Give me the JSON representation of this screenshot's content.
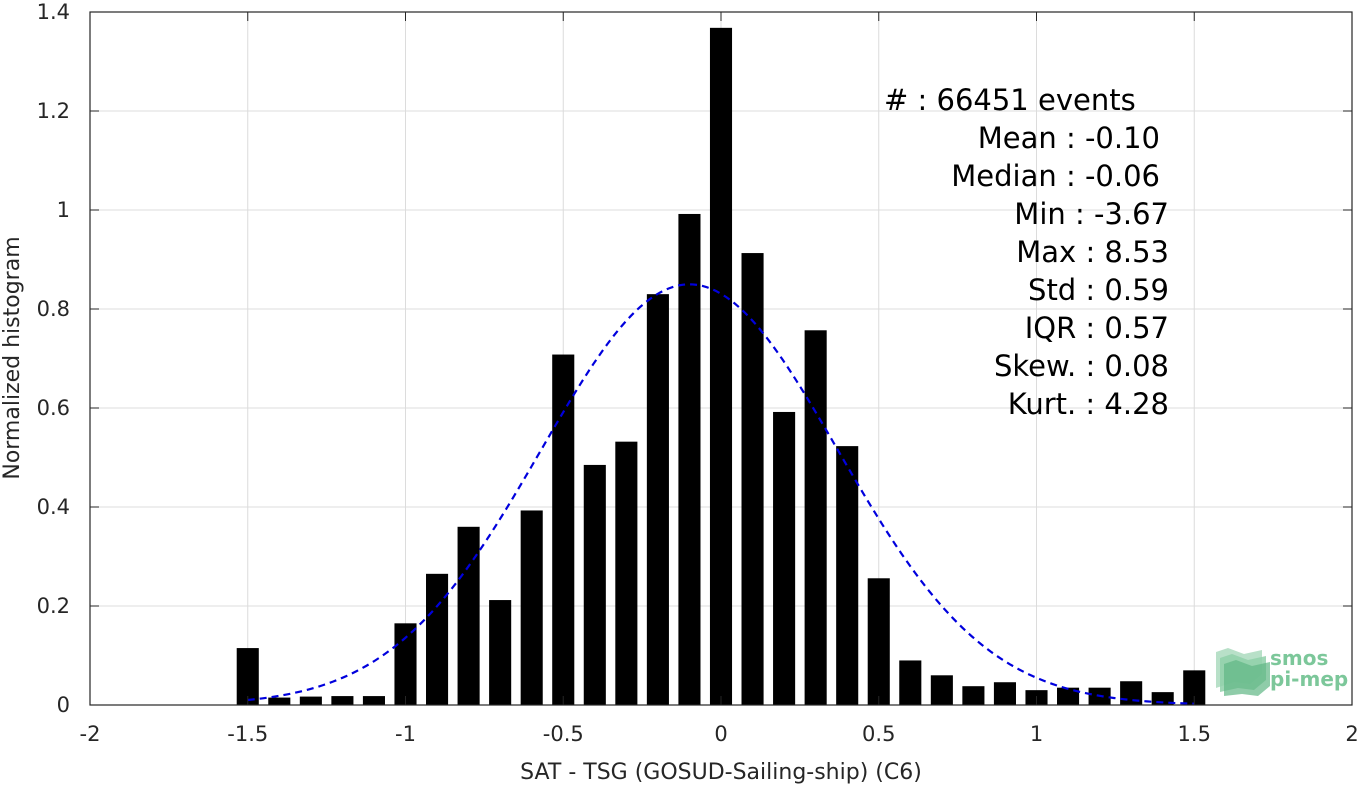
{
  "chart_data": {
    "type": "bar",
    "xlabel": "SAT - TSG (GOSUD-Sailing-ship) (C6)",
    "ylabel": "Normalized histogram",
    "xlim": [
      -2,
      2
    ],
    "ylim": [
      0,
      1.4
    ],
    "xticks": [
      "-2",
      "-1.5",
      "-1",
      "-0.5",
      "0",
      "0.5",
      "1",
      "1.5",
      "2"
    ],
    "yticks": [
      "0",
      "0.2",
      "0.4",
      "0.6",
      "0.8",
      "1",
      "1.2",
      "1.4"
    ],
    "grid": true,
    "bar_width": 0.07,
    "x": [
      -1.5,
      -1.4,
      -1.3,
      -1.2,
      -1.1,
      -1.0,
      -0.9,
      -0.8,
      -0.7,
      -0.6,
      -0.5,
      -0.4,
      -0.3,
      -0.2,
      -0.1,
      0.0,
      0.1,
      0.2,
      0.3,
      0.4,
      0.5,
      0.6,
      0.7,
      0.8,
      0.9,
      1.0,
      1.1,
      1.2,
      1.3,
      1.4,
      1.5
    ],
    "values": [
      0.115,
      0.015,
      0.017,
      0.018,
      0.018,
      0.165,
      0.265,
      0.36,
      0.212,
      0.393,
      0.708,
      0.485,
      0.532,
      0.83,
      0.992,
      1.368,
      0.913,
      0.592,
      0.757,
      0.523,
      0.256,
      0.09,
      0.06,
      0.038,
      0.046,
      0.03,
      0.035,
      0.035,
      0.048,
      0.026,
      0.07
    ],
    "bar_color": "#000000",
    "fit": {
      "type": "normal",
      "mean": -0.1,
      "std": 0.47,
      "x_range": [
        -1.5,
        1.5
      ],
      "style": "dashed",
      "color": "#0000dd"
    },
    "stats": [
      {
        "label": "#  : 66451 events"
      },
      {
        "label": "Mean : -0.10"
      },
      {
        "label": "Median : -0.06"
      },
      {
        "label": "Min : -3.67"
      },
      {
        "label": "Max : 8.53"
      },
      {
        "label": "Std : 0.59"
      },
      {
        "label": "IQR : 0.57"
      },
      {
        "label": "Skew. : 0.08"
      },
      {
        "label": "Kurt. : 4.28"
      }
    ]
  },
  "logo": {
    "line1": "smos",
    "line2": "pi-mep",
    "color": "#7cc79a"
  }
}
